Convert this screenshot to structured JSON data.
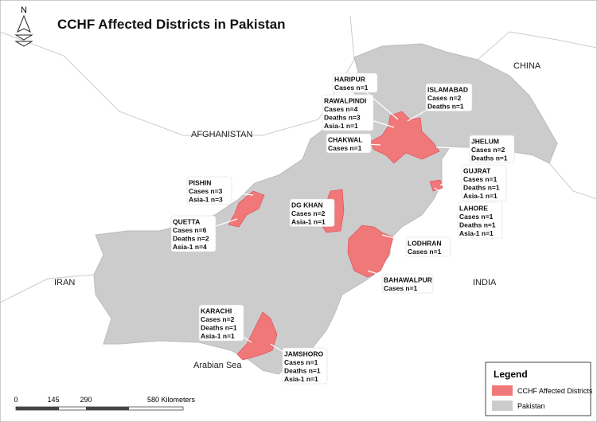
{
  "header": {
    "title": "CCHF Affected Districts in Pakistan",
    "north": "N"
  },
  "places": [
    "CHINA",
    "AFGHANISTAN",
    "IRAN",
    "INDIA",
    "Arabian Sea"
  ],
  "districts": [
    {
      "name": "HARIPUR",
      "lines": [
        "Cases n=1"
      ]
    },
    {
      "name": "ISLAMABAD",
      "lines": [
        "Cases n=2",
        "Deaths n=1"
      ]
    },
    {
      "name": "RAWALPINDI",
      "lines": [
        "Cases n=4",
        "Deaths n=3",
        "Asia-1 n=1"
      ]
    },
    {
      "name": "CHAKWAL",
      "lines": [
        "Cases n=1"
      ]
    },
    {
      "name": "JHELUM",
      "lines": [
        "Cases n=2",
        "Deaths n=1"
      ]
    },
    {
      "name": "GUJRAT",
      "lines": [
        "Cases n=1",
        "Deaths n=1",
        "Asia-1 n=1"
      ]
    },
    {
      "name": "LAHORE",
      "lines": [
        "Cases n=1",
        "Deaths n=1",
        "Asia-1 n=1"
      ]
    },
    {
      "name": "PISHIN",
      "lines": [
        "Cases n=3",
        "Asia-1 n=3"
      ]
    },
    {
      "name": "QUETTA",
      "lines": [
        "Cases n=6",
        "Deaths n=2",
        "Asia-1 n=4"
      ]
    },
    {
      "name": "DG KHAN",
      "lines": [
        "Cases n=2",
        "Asia-1 n=1"
      ]
    },
    {
      "name": "LODHRAN",
      "lines": [
        "Cases n=1"
      ]
    },
    {
      "name": "BAHAWALPUR",
      "lines": [
        "Cases n=1"
      ]
    },
    {
      "name": "KARACHI",
      "lines": [
        "Cases n=2",
        "Deaths n=1",
        "Asia-1 n=1"
      ]
    },
    {
      "name": "JAMSHORO",
      "lines": [
        "Cases n=1",
        "Deaths n=1",
        "Asia-1 n=1"
      ]
    }
  ],
  "scale": [
    "0",
    "145",
    "290",
    "580 Kilometers"
  ],
  "legend": {
    "title": "Legend",
    "items": [
      "CCHF Affected Districts",
      "Pakistan"
    ]
  }
}
